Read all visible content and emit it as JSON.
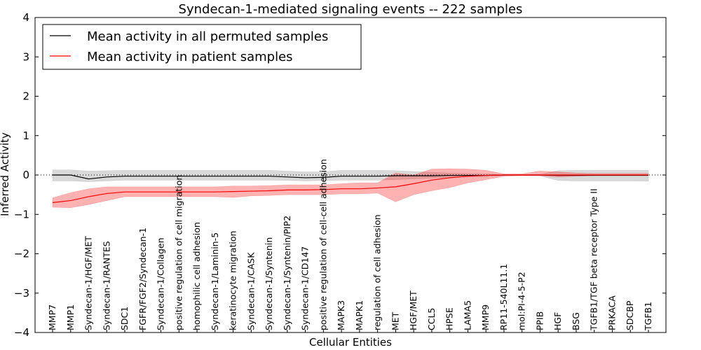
{
  "chart_data": {
    "type": "line",
    "title": "Syndecan-1-mediated signaling events -- 222 samples",
    "xlabel": "Cellular Entities",
    "ylabel": "Inferred Activity",
    "ylim": [
      -4,
      4
    ],
    "yticks": [
      -4,
      -3,
      -2,
      -1,
      0,
      1,
      2,
      3,
      4
    ],
    "ytick_labels": [
      "−4",
      "−3",
      "−2",
      "−1",
      "0",
      "1",
      "2",
      "3",
      "4"
    ],
    "legend_location": "top-left",
    "categories": [
      "MMP7",
      "MMP1",
      "Syndecan-1/HGF/MET",
      "Syndecan-1/RANTES",
      "SDC1",
      "FGFR/FGF2/Syndecan-1",
      "Syndecan-1/Collagen",
      "positive regulation of cell migration",
      "homophilic cell adhesion",
      "Syndecan-1/Laminin-5",
      "keratinocyte migration",
      "Syndecan-1/CASK",
      "Syndecan-1/Syntenin",
      "Syndecan-1/Syntenin/PIP2",
      "Syndecan-1/CD147",
      "positive regulation of cell-cell adhesion",
      "MAPK3",
      "MAPK1",
      "regulation of cell adhesion",
      "MET",
      "HGF/MET",
      "CCL5",
      "HPSE",
      "LAMA5",
      "MMP9",
      "RP11-540L11.1",
      "mol:PI-4-5-P2",
      "PPIB",
      "HGF",
      "BSG",
      "TGFB1/TGF beta receptor Type II",
      "PRKACA",
      "SDCBP",
      "TGFB1"
    ],
    "series": [
      {
        "name": "Mean activity in all permuted samples",
        "color": "#000000",
        "values": [
          0.0,
          0.0,
          -0.1,
          -0.05,
          -0.03,
          -0.03,
          -0.03,
          -0.03,
          -0.03,
          -0.03,
          -0.03,
          -0.03,
          -0.03,
          -0.05,
          -0.07,
          -0.06,
          -0.03,
          -0.03,
          -0.03,
          -0.02,
          -0.02,
          -0.02,
          -0.01,
          -0.01,
          -0.01,
          0.0,
          0.0,
          0.0,
          -0.01,
          -0.01,
          -0.01,
          -0.01,
          -0.01,
          -0.01
        ],
        "lower": [
          -0.15,
          -0.15,
          -0.17,
          -0.15,
          -0.13,
          -0.13,
          -0.13,
          -0.13,
          -0.13,
          -0.13,
          -0.13,
          -0.13,
          -0.13,
          -0.14,
          -0.15,
          -0.14,
          -0.13,
          -0.13,
          -0.13,
          -0.12,
          -0.1,
          -0.08,
          -0.06,
          -0.05,
          -0.04,
          -0.01,
          -0.01,
          -0.02,
          -0.14,
          -0.15,
          -0.15,
          -0.15,
          -0.15,
          -0.16
        ],
        "upper": [
          0.13,
          0.13,
          0.1,
          0.11,
          0.12,
          0.12,
          0.12,
          0.12,
          0.12,
          0.12,
          0.12,
          0.12,
          0.12,
          0.1,
          0.08,
          0.08,
          0.12,
          0.12,
          0.12,
          0.11,
          0.09,
          0.07,
          0.05,
          0.04,
          0.03,
          0.01,
          0.01,
          0.02,
          0.11,
          0.12,
          0.12,
          0.12,
          0.12,
          0.12
        ]
      },
      {
        "name": "Mean activity in patient samples",
        "color": "#ff0000",
        "values": [
          -0.7,
          -0.65,
          -0.55,
          -0.47,
          -0.43,
          -0.43,
          -0.43,
          -0.43,
          -0.43,
          -0.43,
          -0.42,
          -0.41,
          -0.4,
          -0.38,
          -0.38,
          -0.37,
          -0.35,
          -0.35,
          -0.33,
          -0.3,
          -0.22,
          -0.13,
          -0.07,
          -0.03,
          -0.01,
          0.0,
          0.0,
          0.0,
          0.0,
          0.0,
          0.0,
          0.0,
          0.0,
          0.0
        ],
        "lower": [
          -0.82,
          -0.83,
          -0.75,
          -0.65,
          -0.55,
          -0.55,
          -0.55,
          -0.55,
          -0.55,
          -0.55,
          -0.57,
          -0.53,
          -0.52,
          -0.5,
          -0.5,
          -0.5,
          -0.48,
          -0.48,
          -0.46,
          -0.68,
          -0.5,
          -0.4,
          -0.32,
          -0.2,
          -0.12,
          -0.03,
          -0.02,
          -0.02,
          -0.05,
          -0.03,
          -0.01,
          -0.01,
          -0.01,
          -0.01
        ],
        "upper": [
          -0.58,
          -0.45,
          -0.35,
          -0.3,
          -0.3,
          -0.3,
          -0.3,
          -0.3,
          -0.3,
          -0.3,
          -0.28,
          -0.28,
          -0.27,
          -0.25,
          -0.25,
          -0.25,
          -0.22,
          -0.2,
          -0.2,
          0.05,
          0.0,
          0.15,
          0.16,
          0.15,
          0.12,
          0.03,
          0.03,
          0.1,
          0.08,
          0.05,
          0.04,
          0.04,
          0.04,
          0.04
        ]
      }
    ]
  }
}
